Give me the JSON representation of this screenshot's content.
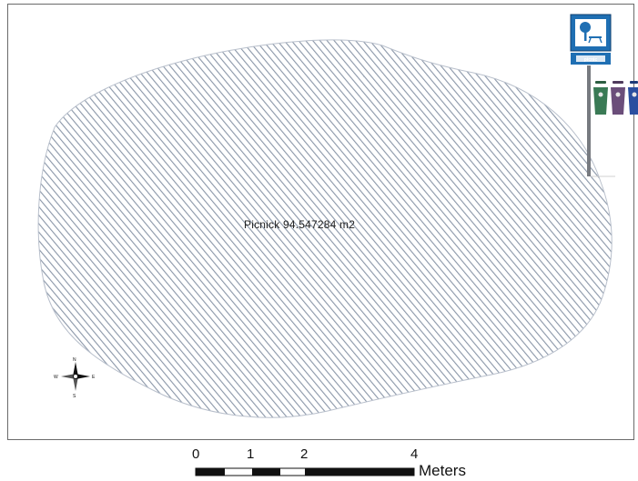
{
  "map": {
    "area_label": "Picnick  94.547284 m2",
    "fill_pattern": "diagonal-hatch",
    "hatch_color": "#8a96a8",
    "outline_color": "#b9c0cc"
  },
  "legend_sign": {
    "icon": "picnic-table-sign-icon",
    "sign_color": "#1f6fb3",
    "caption": "picnic"
  },
  "bins": [
    {
      "icon": "trash-bin-icon",
      "color": "#3a7a55"
    },
    {
      "icon": "trash-bin-icon",
      "color": "#6b4e7a"
    },
    {
      "icon": "trash-bin-icon",
      "color": "#2a4fa0"
    }
  ],
  "north_arrow": {
    "icon": "north-arrow-icon",
    "n": "N",
    "s": "S",
    "e": "E",
    "w": "W"
  },
  "scale_bar": {
    "ticks": [
      "0",
      "1",
      "2",
      "4"
    ],
    "unit": "Meters"
  }
}
